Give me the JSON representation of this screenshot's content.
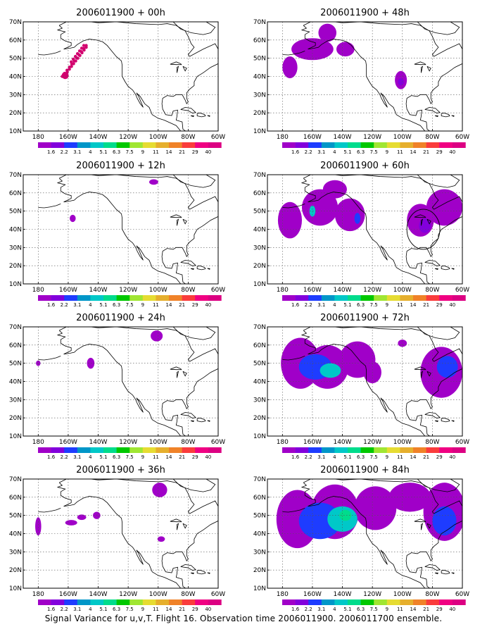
{
  "footer": "Signal Variance for u,v,T. Flight 16. Observation time 2006011900. 2006011700 ensemble.",
  "lat_labels": [
    "10N",
    "20N",
    "30N",
    "40N",
    "50N",
    "60N",
    "70N"
  ],
  "lon_labels": [
    "180",
    "160W",
    "140W",
    "120W",
    "100W",
    "80W",
    "60W"
  ],
  "colorbar": {
    "labels": [
      "1.6",
      "2.2",
      "3.1",
      "4",
      "5.1",
      "6.3",
      "7.5",
      "9",
      "11",
      "14",
      "21",
      "29",
      "40"
    ],
    "colors": [
      "#a000c8",
      "#8200dc",
      "#1e3cff",
      "#0096c8",
      "#00c8c8",
      "#00dc8c",
      "#00c800",
      "#a0e632",
      "#e6dc32",
      "#e6af2d",
      "#f08228",
      "#fa3c3c",
      "#f00082",
      "#dc0082"
    ]
  },
  "panels": [
    {
      "title": "2006011900 + 00h",
      "plumes": [],
      "track": true
    },
    {
      "title": "2006011900 + 12h",
      "plumes": [
        {
          "lon": -157,
          "lat": 46,
          "rx": 2,
          "ry": 2,
          "lvl": 0
        },
        {
          "lon": -103,
          "lat": 66,
          "rx": 3,
          "ry": 1.5,
          "lvl": 0
        }
      ]
    },
    {
      "title": "2006011900 + 24h",
      "plumes": [
        {
          "lon": -180,
          "lat": 50,
          "rx": 1.5,
          "ry": 1.5,
          "lvl": 0
        },
        {
          "lon": -145,
          "lat": 50,
          "rx": 2.5,
          "ry": 3,
          "lvl": 0
        },
        {
          "lon": -101,
          "lat": 65,
          "rx": 4,
          "ry": 3,
          "lvl": 0
        }
      ]
    },
    {
      "title": "2006011900 + 36h",
      "plumes": [
        {
          "lon": -180,
          "lat": 44,
          "rx": 2,
          "ry": 5,
          "lvl": 0
        },
        {
          "lon": -158,
          "lat": 46,
          "rx": 4,
          "ry": 1.5,
          "lvl": 0
        },
        {
          "lon": -151,
          "lat": 49,
          "rx": 3,
          "ry": 1.5,
          "lvl": 0
        },
        {
          "lon": -141,
          "lat": 50,
          "rx": 2.5,
          "ry": 2,
          "lvl": 0
        },
        {
          "lon": -99,
          "lat": 64,
          "rx": 5,
          "ry": 4,
          "lvl": 0
        },
        {
          "lon": -98,
          "lat": 37,
          "rx": 2.5,
          "ry": 1.5,
          "lvl": 0
        }
      ]
    },
    {
      "title": "2006011900 + 48h",
      "plumes": [
        {
          "lon": -175,
          "lat": 45,
          "rx": 5,
          "ry": 6,
          "lvl": 0
        },
        {
          "lon": -160,
          "lat": 55,
          "rx": 14,
          "ry": 6,
          "lvl": 0
        },
        {
          "lon": -150,
          "lat": 64,
          "rx": 6,
          "ry": 5,
          "lvl": 0
        },
        {
          "lon": -138,
          "lat": 55,
          "rx": 6,
          "ry": 4,
          "lvl": 0
        },
        {
          "lon": -101,
          "lat": 38,
          "rx": 4,
          "ry": 5,
          "lvl": 0
        },
        {
          "lon": -101,
          "lat": 37,
          "rx": 2,
          "ry": 2,
          "lvl": 1
        }
      ]
    },
    {
      "title": "2006011900 + 60h",
      "plumes": [
        {
          "lon": -175,
          "lat": 45,
          "rx": 8,
          "ry": 10,
          "lvl": 0
        },
        {
          "lon": -155,
          "lat": 52,
          "rx": 12,
          "ry": 10,
          "lvl": 0
        },
        {
          "lon": -135,
          "lat": 48,
          "rx": 10,
          "ry": 9,
          "lvl": 0
        },
        {
          "lon": -145,
          "lat": 62,
          "rx": 8,
          "ry": 5,
          "lvl": 0
        },
        {
          "lon": -88,
          "lat": 45,
          "rx": 9,
          "ry": 9,
          "lvl": 0
        },
        {
          "lon": -72,
          "lat": 52,
          "rx": 12,
          "ry": 10,
          "lvl": 0
        },
        {
          "lon": -85,
          "lat": 42,
          "rx": 4,
          "ry": 4,
          "lvl": 1
        },
        {
          "lon": -160,
          "lat": 50,
          "rx": 2,
          "ry": 3,
          "lvl": 4
        },
        {
          "lon": -130,
          "lat": 46,
          "rx": 2,
          "ry": 3,
          "lvl": 2
        }
      ],
      "circles": [
        {
          "lon": -86,
          "lat": 40,
          "r": 11
        }
      ]
    },
    {
      "title": "2006011900 + 72h",
      "plumes": [
        {
          "lon": -168,
          "lat": 50,
          "rx": 13,
          "ry": 14,
          "lvl": 0
        },
        {
          "lon": -150,
          "lat": 48,
          "rx": 14,
          "ry": 12,
          "lvl": 0
        },
        {
          "lon": -130,
          "lat": 52,
          "rx": 12,
          "ry": 10,
          "lvl": 0
        },
        {
          "lon": -120,
          "lat": 45,
          "rx": 6,
          "ry": 6,
          "lvl": 0
        },
        {
          "lon": -158,
          "lat": 48,
          "rx": 11,
          "ry": 7,
          "lvl": 2
        },
        {
          "lon": -148,
          "lat": 46,
          "rx": 7,
          "ry": 4,
          "lvl": 4
        },
        {
          "lon": -74,
          "lat": 45,
          "rx": 14,
          "ry": 14,
          "lvl": 0
        },
        {
          "lon": -70,
          "lat": 48,
          "rx": 7,
          "ry": 6,
          "lvl": 2
        },
        {
          "lon": -100,
          "lat": 61,
          "rx": 3,
          "ry": 2,
          "lvl": 0
        }
      ]
    },
    {
      "title": "2006011900 + 84h",
      "plumes": [
        {
          "lon": -170,
          "lat": 48,
          "rx": 14,
          "ry": 16,
          "lvl": 0
        },
        {
          "lon": -145,
          "lat": 52,
          "rx": 16,
          "ry": 15,
          "lvl": 0
        },
        {
          "lon": -118,
          "lat": 54,
          "rx": 14,
          "ry": 12,
          "lvl": 0
        },
        {
          "lon": -95,
          "lat": 60,
          "rx": 14,
          "ry": 8,
          "lvl": 0
        },
        {
          "lon": -72,
          "lat": 52,
          "rx": 14,
          "ry": 16,
          "lvl": 0
        },
        {
          "lon": -155,
          "lat": 47,
          "rx": 14,
          "ry": 10,
          "lvl": 2
        },
        {
          "lon": -140,
          "lat": 48,
          "rx": 10,
          "ry": 7,
          "lvl": 4
        },
        {
          "lon": -138,
          "lat": 50,
          "rx": 4,
          "ry": 3,
          "lvl": 5
        },
        {
          "lon": -72,
          "lat": 47,
          "rx": 8,
          "ry": 8,
          "lvl": 2
        }
      ]
    }
  ]
}
